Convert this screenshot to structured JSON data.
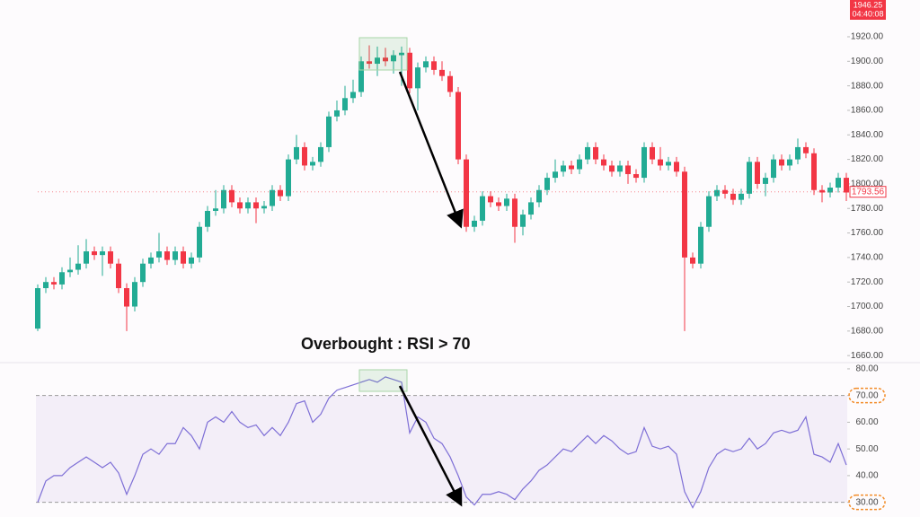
{
  "chart_data": [
    {
      "type": "candlestick",
      "header": {
        "price": "1946.25",
        "time": "04:40:08"
      },
      "annotation": "Overbought : RSI > 70",
      "up_color": "#22ab94",
      "down_color": "#f23645",
      "ylim": [
        1655,
        1950
      ],
      "yticks": [
        {
          "value": 1660,
          "label": "1660.00"
        },
        {
          "value": 1680,
          "label": "1680.00"
        },
        {
          "value": 1700,
          "label": "1700.00"
        },
        {
          "value": 1720,
          "label": "1720.00"
        },
        {
          "value": 1740,
          "label": "1740.00"
        },
        {
          "value": 1760,
          "label": "1760.00"
        },
        {
          "value": 1780,
          "label": "1780.00"
        },
        {
          "value": 1800,
          "label": "1800.00"
        },
        {
          "value": 1820,
          "label": "1820.00"
        },
        {
          "value": 1840,
          "label": "1840.00"
        },
        {
          "value": 1860,
          "label": "1860.00"
        },
        {
          "value": 1880,
          "label": "1880.00"
        },
        {
          "value": 1900,
          "label": "1900.00"
        },
        {
          "value": 1920,
          "label": "1920.00"
        }
      ],
      "last_price": {
        "value": 1793.56,
        "label": "1793.56"
      },
      "ohlc": [
        [
          1682,
          1718,
          1680,
          1715
        ],
        [
          1715,
          1724,
          1711,
          1720
        ],
        [
          1720,
          1724,
          1714,
          1718
        ],
        [
          1718,
          1732,
          1714,
          1728
        ],
        [
          1728,
          1740,
          1724,
          1730
        ],
        [
          1730,
          1750,
          1726,
          1735
        ],
        [
          1735,
          1755,
          1731,
          1745
        ],
        [
          1745,
          1749,
          1738,
          1742
        ],
        [
          1742,
          1749,
          1725,
          1745
        ],
        [
          1745,
          1749,
          1731,
          1735
        ],
        [
          1735,
          1739,
          1711,
          1715
        ],
        [
          1715,
          1719,
          1680,
          1700
        ],
        [
          1700,
          1724,
          1696,
          1720
        ],
        [
          1720,
          1739,
          1716,
          1735
        ],
        [
          1735,
          1744,
          1731,
          1740
        ],
        [
          1740,
          1760,
          1736,
          1745
        ],
        [
          1745,
          1749,
          1734,
          1738
        ],
        [
          1738,
          1749,
          1734,
          1745
        ],
        [
          1745,
          1749,
          1731,
          1735
        ],
        [
          1735,
          1744,
          1731,
          1740
        ],
        [
          1740,
          1769,
          1736,
          1765
        ],
        [
          1765,
          1782,
          1761,
          1778
        ],
        [
          1778,
          1795,
          1774,
          1780
        ],
        [
          1780,
          1799,
          1776,
          1795
        ],
        [
          1795,
          1799,
          1781,
          1785
        ],
        [
          1785,
          1789,
          1776,
          1780
        ],
        [
          1780,
          1789,
          1776,
          1785
        ],
        [
          1785,
          1789,
          1768,
          1780
        ],
        [
          1780,
          1786,
          1776,
          1782
        ],
        [
          1782,
          1799,
          1778,
          1795
        ],
        [
          1795,
          1799,
          1786,
          1790
        ],
        [
          1790,
          1824,
          1786,
          1820
        ],
        [
          1820,
          1840,
          1816,
          1830
        ],
        [
          1830,
          1834,
          1811,
          1815
        ],
        [
          1815,
          1822,
          1811,
          1818
        ],
        [
          1818,
          1834,
          1814,
          1830
        ],
        [
          1830,
          1859,
          1826,
          1855
        ],
        [
          1855,
          1868,
          1851,
          1860
        ],
        [
          1860,
          1880,
          1856,
          1870
        ],
        [
          1870,
          1885,
          1866,
          1875
        ],
        [
          1875,
          1904,
          1871,
          1900
        ],
        [
          1900,
          1913,
          1894,
          1898
        ],
        [
          1898,
          1912,
          1888,
          1903
        ],
        [
          1903,
          1911,
          1896,
          1900
        ],
        [
          1900,
          1909,
          1890,
          1905
        ],
        [
          1905,
          1912,
          1880,
          1907
        ],
        [
          1907,
          1911,
          1874,
          1878
        ],
        [
          1878,
          1899,
          1860,
          1895
        ],
        [
          1895,
          1904,
          1891,
          1900
        ],
        [
          1900,
          1904,
          1889,
          1893
        ],
        [
          1893,
          1900,
          1884,
          1888
        ],
        [
          1888,
          1892,
          1871,
          1875
        ],
        [
          1875,
          1879,
          1816,
          1820
        ],
        [
          1820,
          1824,
          1761,
          1765
        ],
        [
          1765,
          1774,
          1761,
          1770
        ],
        [
          1770,
          1794,
          1766,
          1790
        ],
        [
          1790,
          1794,
          1781,
          1785
        ],
        [
          1785,
          1789,
          1778,
          1782
        ],
        [
          1782,
          1792,
          1778,
          1788
        ],
        [
          1788,
          1792,
          1752,
          1765
        ],
        [
          1765,
          1779,
          1758,
          1775
        ],
        [
          1775,
          1789,
          1771,
          1785
        ],
        [
          1785,
          1799,
          1781,
          1795
        ],
        [
          1795,
          1809,
          1791,
          1805
        ],
        [
          1805,
          1820,
          1801,
          1810
        ],
        [
          1810,
          1819,
          1806,
          1815
        ],
        [
          1815,
          1819,
          1808,
          1812
        ],
        [
          1812,
          1824,
          1808,
          1820
        ],
        [
          1820,
          1834,
          1816,
          1830
        ],
        [
          1830,
          1834,
          1816,
          1820
        ],
        [
          1820,
          1824,
          1811,
          1815
        ],
        [
          1815,
          1819,
          1806,
          1810
        ],
        [
          1810,
          1819,
          1806,
          1815
        ],
        [
          1815,
          1819,
          1800,
          1808
        ],
        [
          1808,
          1812,
          1801,
          1805
        ],
        [
          1805,
          1834,
          1801,
          1830
        ],
        [
          1830,
          1834,
          1816,
          1820
        ],
        [
          1820,
          1830,
          1811,
          1815
        ],
        [
          1815,
          1822,
          1811,
          1818
        ],
        [
          1818,
          1822,
          1806,
          1810
        ],
        [
          1810,
          1814,
          1680,
          1740
        ],
        [
          1740,
          1744,
          1731,
          1735
        ],
        [
          1735,
          1769,
          1731,
          1765
        ],
        [
          1765,
          1794,
          1761,
          1790
        ],
        [
          1790,
          1799,
          1786,
          1795
        ],
        [
          1795,
          1799,
          1788,
          1792
        ],
        [
          1792,
          1796,
          1783,
          1787
        ],
        [
          1787,
          1796,
          1783,
          1792
        ],
        [
          1792,
          1822,
          1788,
          1818
        ],
        [
          1818,
          1822,
          1796,
          1800
        ],
        [
          1800,
          1809,
          1790,
          1805
        ],
        [
          1805,
          1824,
          1801,
          1820
        ],
        [
          1820,
          1824,
          1811,
          1815
        ],
        [
          1815,
          1824,
          1811,
          1820
        ],
        [
          1820,
          1837,
          1816,
          1830
        ],
        [
          1830,
          1834,
          1821,
          1825
        ],
        [
          1825,
          1829,
          1791,
          1795
        ],
        [
          1795,
          1799,
          1785,
          1793
        ],
        [
          1793,
          1801,
          1789,
          1797
        ],
        [
          1797,
          1809,
          1793,
          1805
        ],
        [
          1805,
          1809,
          1786,
          1793
        ]
      ]
    },
    {
      "type": "line",
      "color": "#7e6fd6",
      "band": [
        30,
        70
      ],
      "band_color": "#7e57c2",
      "ylim": [
        24.5,
        82
      ],
      "yticks": [
        {
          "value": 30,
          "label": "30.00"
        },
        {
          "value": 40,
          "label": "40.00"
        },
        {
          "value": 50,
          "label": "50.00"
        },
        {
          "value": 60,
          "label": "60.00"
        },
        {
          "value": 70,
          "label": "70.00"
        },
        {
          "value": 80,
          "label": "80.00"
        }
      ],
      "values": [
        30,
        38,
        40,
        40,
        43,
        45,
        47,
        45,
        43,
        45,
        41,
        33,
        40,
        48,
        50,
        48,
        52,
        52,
        58,
        55,
        50,
        60,
        62,
        60,
        64,
        60,
        58,
        59,
        55,
        58,
        55,
        60,
        67,
        68,
        60,
        63,
        69,
        72,
        73,
        74,
        75,
        76,
        75,
        77,
        76,
        75,
        56,
        62,
        60,
        54,
        52,
        47,
        40,
        32,
        29,
        33,
        33,
        34,
        33,
        31,
        35,
        38,
        42,
        44,
        47,
        50,
        49,
        52,
        55,
        52,
        55,
        53,
        50,
        48,
        49,
        58,
        51,
        50,
        51,
        48,
        34,
        28,
        34,
        43,
        48,
        50,
        49,
        50,
        54,
        50,
        52,
        56,
        57,
        56,
        57,
        62,
        48,
        47,
        45,
        52,
        44
      ]
    }
  ]
}
